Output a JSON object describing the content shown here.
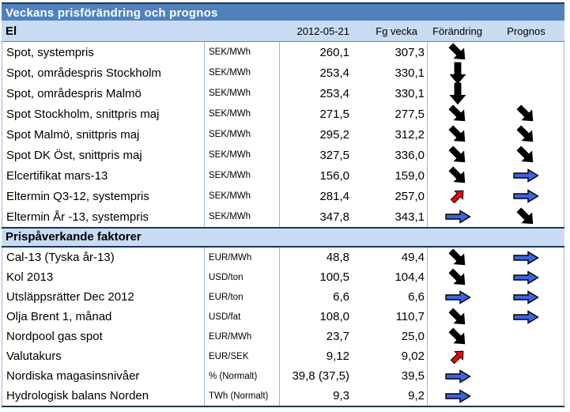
{
  "title": "Veckans prisförändring och prognos",
  "columns": {
    "date": "2012-05-21",
    "prev": "Fg vecka",
    "change": "Förändring",
    "forecast": "Prognos"
  },
  "sections": [
    {
      "title": "El",
      "rows": [
        {
          "name": "Spot, systempris",
          "unit": "SEK/MWh",
          "current": "260,1",
          "prev": "307,3",
          "change": "down-right-black",
          "forecast": ""
        },
        {
          "name": "Spot, områdespris Stockholm",
          "unit": "SEK/MWh",
          "current": "253,4",
          "prev": "330,1",
          "change": "down-black",
          "forecast": ""
        },
        {
          "name": "Spot, områdespris Malmö",
          "unit": "SEK/MWh",
          "current": "253,4",
          "prev": "330,1",
          "change": "down-black",
          "forecast": ""
        },
        {
          "name": "Spot Stockholm, snittpris maj",
          "unit": "SEK/MWh",
          "current": "271,5",
          "prev": "277,5",
          "change": "down-right-black",
          "forecast": "down-right-black"
        },
        {
          "name": "Spot Malmö, snittpris maj",
          "unit": "SEK/MWh",
          "current": "295,2",
          "prev": "312,2",
          "change": "down-right-black",
          "forecast": "down-right-black"
        },
        {
          "name": "Spot DK Öst, snittpris maj",
          "unit": "SEK/MWh",
          "current": "327,5",
          "prev": "336,0",
          "change": "down-right-black",
          "forecast": "down-right-black"
        },
        {
          "name": "Elcertifikat mars-13",
          "unit": "SEK/MWh",
          "current": "156,0",
          "prev": "159,0",
          "change": "down-right-black",
          "forecast": "right-blue"
        },
        {
          "name": "Eltermin Q3-12, systempris",
          "unit": "SEK/MWh",
          "current": "281,4",
          "prev": "257,0",
          "change": "up-right-red",
          "forecast": "right-blue"
        },
        {
          "name": "Eltermin År -13, systempris",
          "unit": "SEK/MWh",
          "current": "347,8",
          "prev": "343,1",
          "change": "right-blue",
          "forecast": "down-right-black"
        }
      ]
    },
    {
      "title": "Prispåverkande faktorer",
      "rows": [
        {
          "name": "Cal-13 (Tyska år-13)",
          "unit": "EUR/MWh",
          "current": "48,8",
          "prev": "49,4",
          "change": "down-right-black",
          "forecast": "right-blue"
        },
        {
          "name": "Kol 2013",
          "unit": "USD/ton",
          "current": "100,5",
          "prev": "104,4",
          "change": "down-right-black",
          "forecast": "right-blue"
        },
        {
          "name": "Utsläppsrätter Dec 2012",
          "unit": "EUR/ton",
          "current": "6,6",
          "prev": "6,6",
          "change": "right-blue",
          "forecast": "right-blue"
        },
        {
          "name": "Olja Brent 1, månad",
          "unit": "USD/fat",
          "current": "108,0",
          "prev": "110,7",
          "change": "down-right-black",
          "forecast": "right-blue"
        },
        {
          "name": "Nordpool gas spot",
          "unit": "EUR/MWh",
          "current": "23,7",
          "prev": "25,0",
          "change": "down-right-black",
          "forecast": ""
        },
        {
          "name": "Valutakurs",
          "unit": "EUR/SEK",
          "current": "9,12",
          "prev": "9,02",
          "change": "up-right-red",
          "forecast": ""
        },
        {
          "name": "Nordiska magasinsnivåer",
          "unit": "% (Normalt)",
          "current": "39,8 (37,5)",
          "prev": "39,5",
          "change": "right-blue",
          "forecast": ""
        },
        {
          "name": "Hydrologisk balans Norden",
          "unit": "TWh (Normalt)",
          "current": "9,3",
          "prev": "9,2",
          "change": "right-blue",
          "forecast": ""
        }
      ]
    }
  ],
  "colors": {
    "title_bar_bg": "#4F81BD",
    "header_row_bg": "#C8DBF2",
    "dark_border": "#17375E",
    "column_separator": "#9db8da",
    "arrow_blue": "#3A63E8",
    "arrow_red": "#FF0000",
    "arrow_black": "#000000"
  }
}
